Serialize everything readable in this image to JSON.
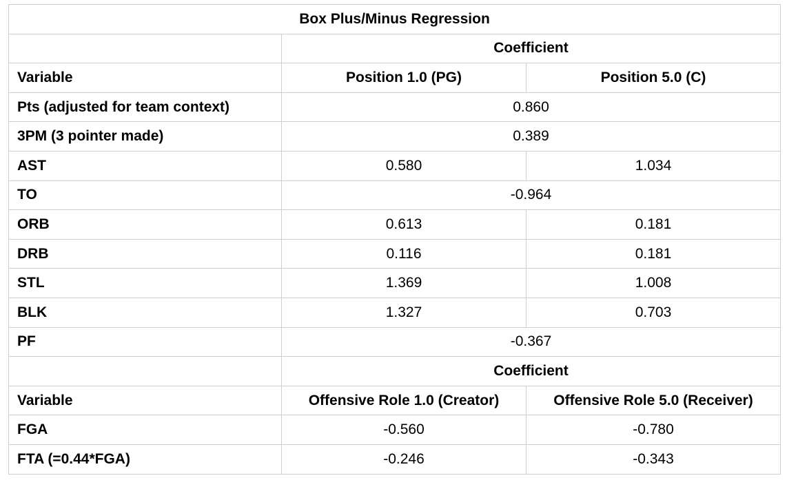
{
  "table": {
    "title": "Box Plus/Minus Regression",
    "section1": {
      "group_header": "Coefficient",
      "var_header": "Variable",
      "col_a": "Position 1.0 (PG)",
      "col_b": "Position 5.0 (C)",
      "rows": [
        {
          "variable": "Pts (adjusted for team context)",
          "shared": "0.860"
        },
        {
          "variable": "3PM (3 pointer made)",
          "shared": "0.389"
        },
        {
          "variable": "AST",
          "a": "0.580",
          "b": "1.034"
        },
        {
          "variable": "TO",
          "shared": "-0.964"
        },
        {
          "variable": "ORB",
          "a": "0.613",
          "b": "0.181"
        },
        {
          "variable": "DRB",
          "a": "0.116",
          "b": "0.181"
        },
        {
          "variable": "STL",
          "a": "1.369",
          "b": "1.008"
        },
        {
          "variable": "BLK",
          "a": "1.327",
          "b": "0.703"
        },
        {
          "variable": "PF",
          "shared": "-0.367"
        }
      ]
    },
    "section2": {
      "group_header": "Coefficient",
      "var_header": "Variable",
      "col_a": "Offensive Role 1.0 (Creator)",
      "col_b": "Offensive Role 5.0 (Receiver)",
      "rows": [
        {
          "variable": "FGA",
          "a": "-0.560",
          "b": "-0.780"
        },
        {
          "variable": "FTA (=0.44*FGA)",
          "a": "-0.246",
          "b": "-0.343"
        }
      ]
    }
  }
}
